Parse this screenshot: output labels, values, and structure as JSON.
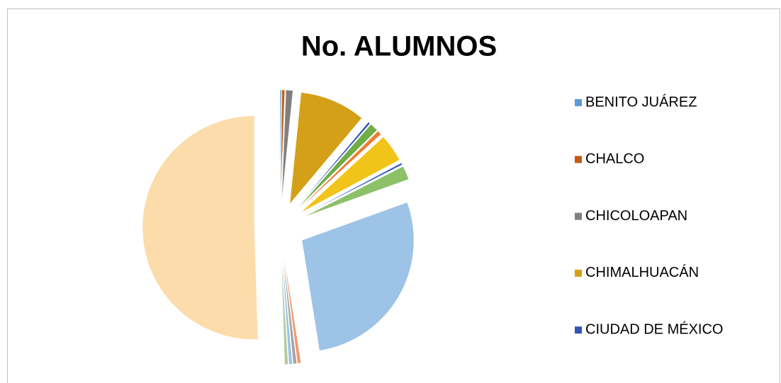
{
  "chart_data": {
    "type": "pie",
    "title": "No. ALUMNOS",
    "categories": [
      "BENITO JUÁREZ",
      "CHALCO",
      "CHICOLOAPAN",
      "CHIMALHUACÁN",
      "CIUDAD DE MÉXICO",
      null,
      null,
      null,
      null,
      null,
      null,
      null,
      null,
      null,
      null,
      null
    ],
    "values": [
      0.2,
      0.4,
      1.0,
      9.5,
      0.3,
      1.2,
      0.6,
      4.0,
      0.3,
      2.0,
      28,
      0.5,
      0.5,
      0.5,
      0.5,
      50.5
    ],
    "colors": [
      "#5b9bd5",
      "#c55a11",
      "#7f7f7f",
      "#d4a017",
      "#2f55b4",
      "#70ad47",
      "#ed7d31",
      "#f0c419",
      "#3a63c8",
      "#8cc168",
      "#9dc3e6",
      "#f09a6e",
      "#a5a5a5",
      "#9dc3e6",
      "#b7c9a0",
      "#fcdcaa"
    ],
    "legend": "right"
  }
}
